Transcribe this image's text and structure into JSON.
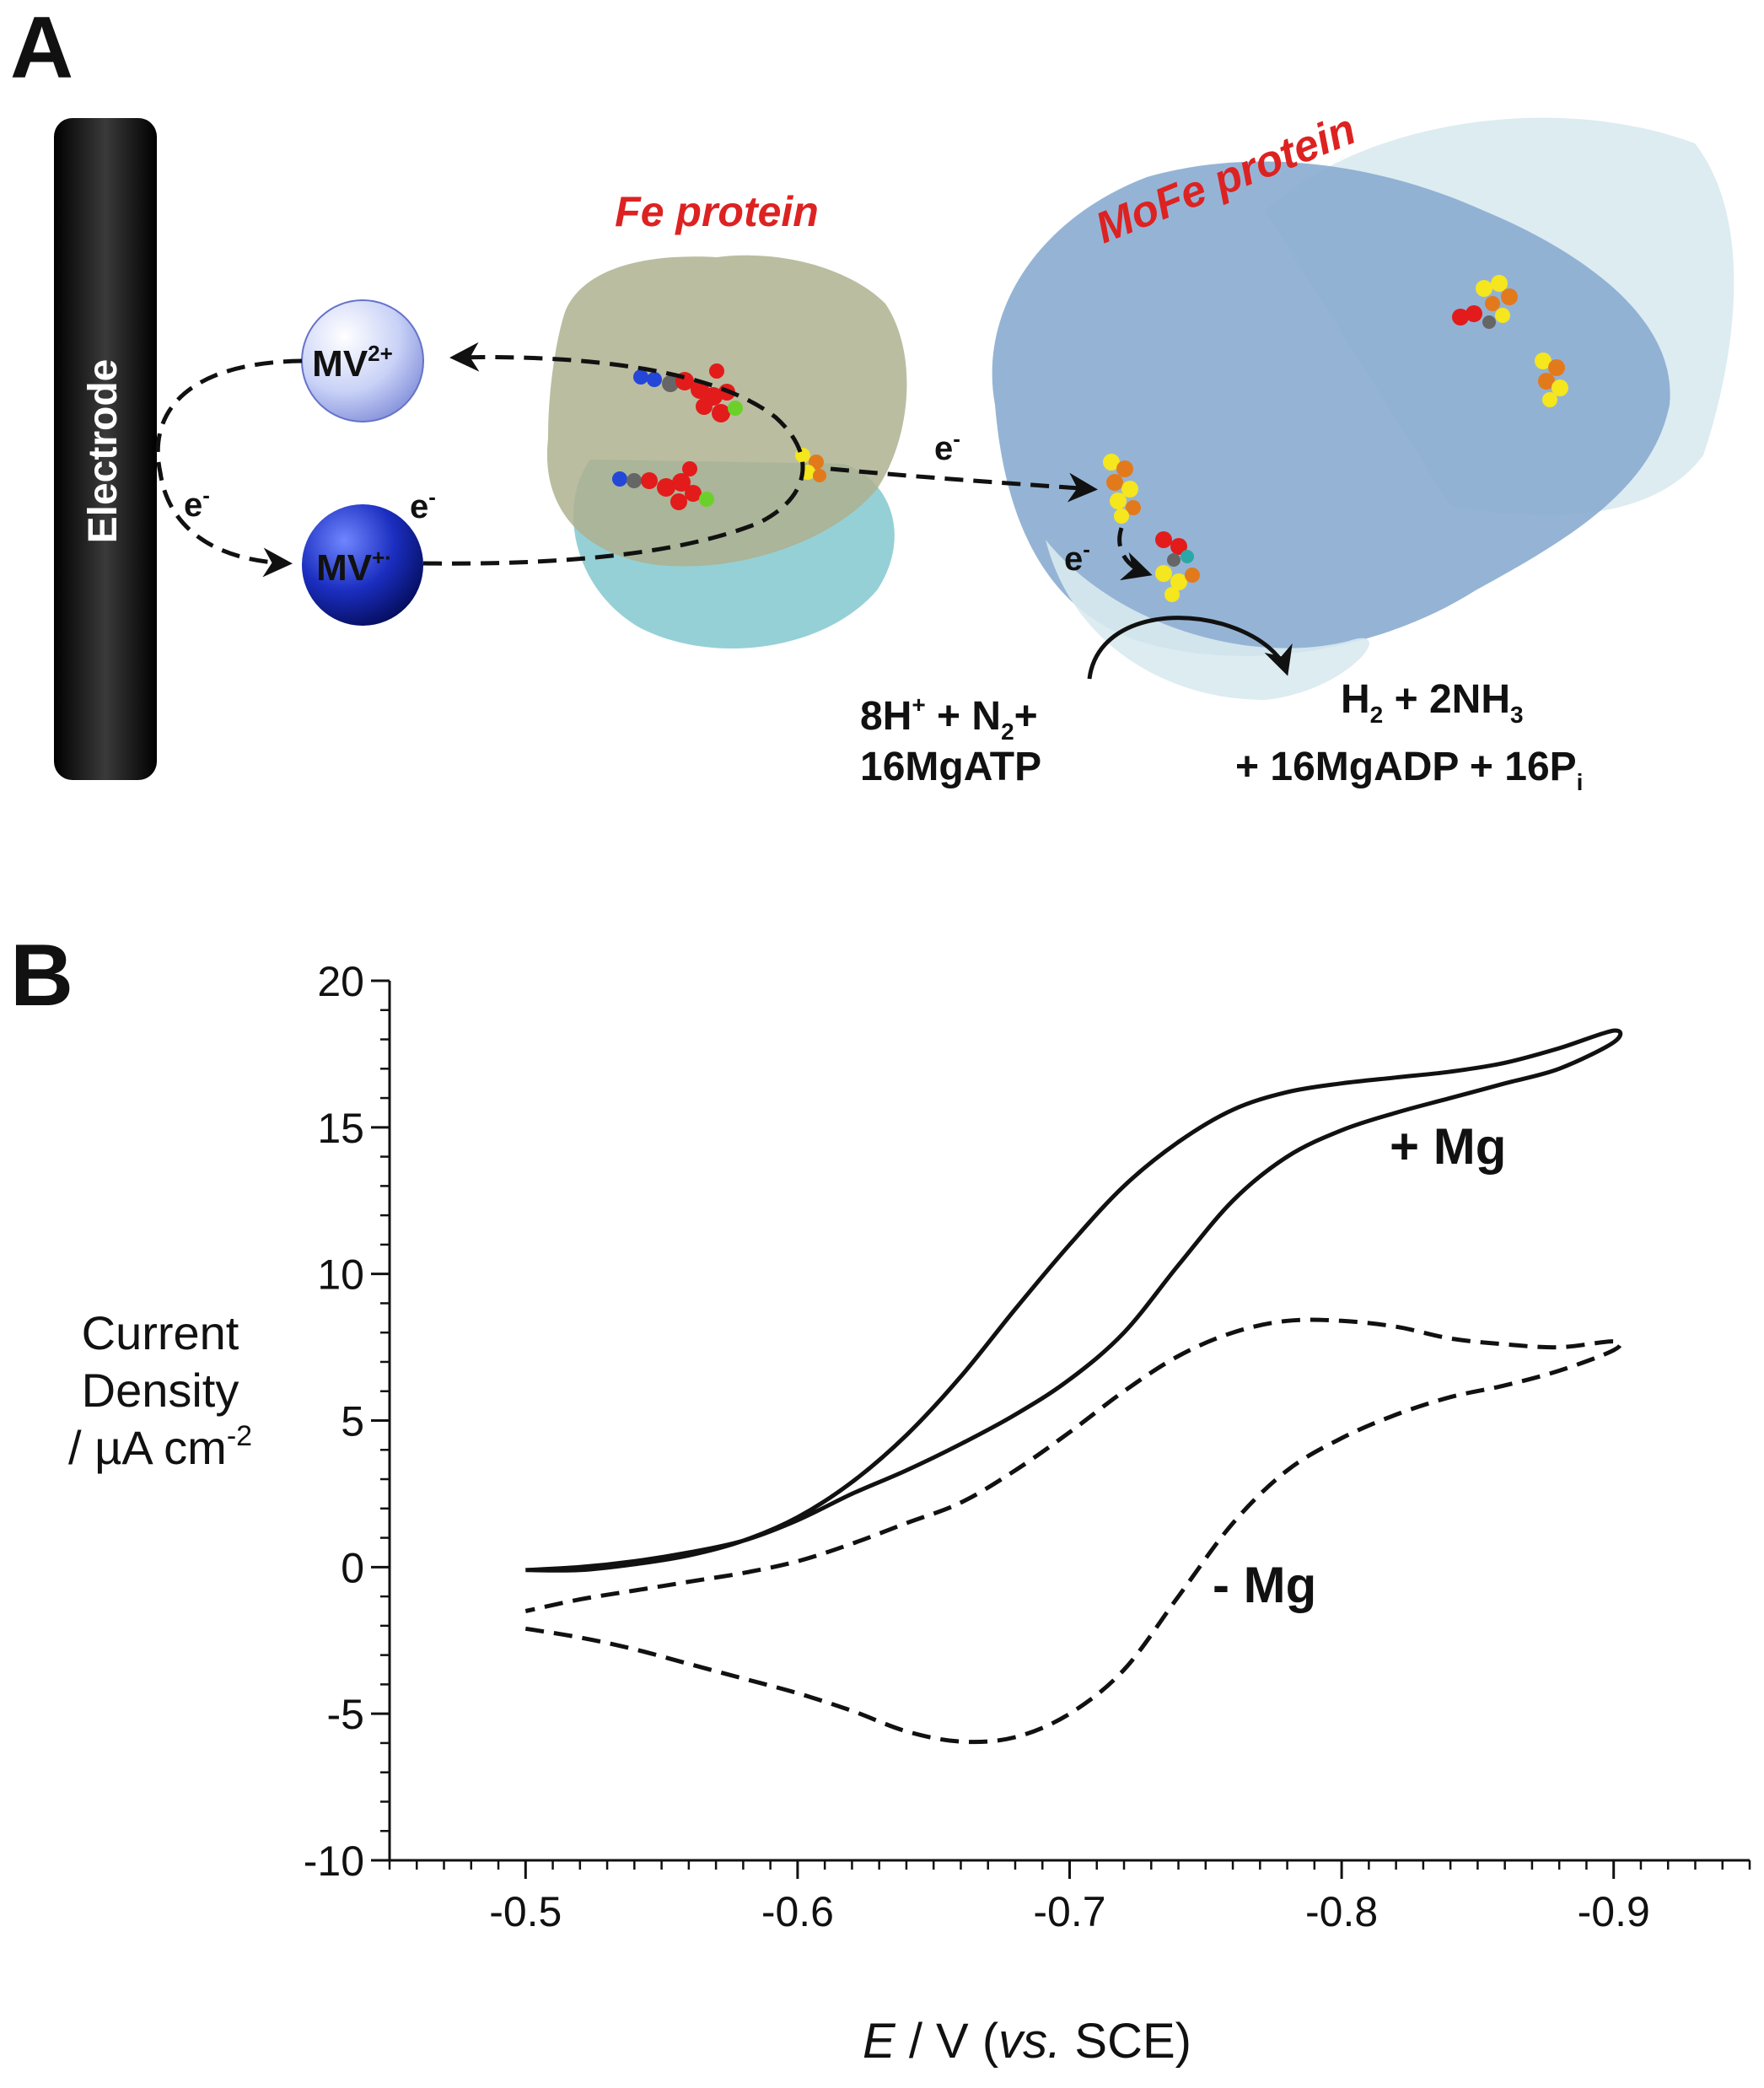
{
  "panel_a": {
    "letter": "A",
    "electrode_label": "Electrode",
    "mv_oxidized": {
      "base": "MV",
      "sup": "2+"
    },
    "mv_reduced": {
      "base": "MV",
      "sup": "+·"
    },
    "electron": {
      "base": "e",
      "sup": "-"
    },
    "fe_protein_label": "Fe protein",
    "mofe_protein_label": "MoFe protein",
    "reactants_line1": {
      "t1": "8H",
      "s1": "+",
      "t2": " + N",
      "s2": "2",
      "t3": "+"
    },
    "reactants_line2": "16MgATP",
    "products_line1": {
      "t1": "H",
      "s1": "2",
      "t2": " + 2NH",
      "s2": "3"
    },
    "products_line2": {
      "t1": "+ 16MgADP + 16P",
      "s1": "i"
    },
    "colors": {
      "protein_label": "#dd2222",
      "mv_light": "#c9d2f7",
      "mv_dark": "#0b1a9a",
      "fe_protein": "#a9ad8a",
      "fe_protein_back": "#5fb8c2",
      "mofe_protein": "#8aacd0",
      "mofe_back": "#d8eaf0"
    }
  },
  "panel_b": {
    "letter": "B",
    "label_plus_mg": "+ Mg",
    "label_minus_mg": "- Mg"
  },
  "chart_data": {
    "type": "line",
    "title": "",
    "xlabel": {
      "italic": "E",
      "mid": " / V (",
      "italic2": "vs.",
      "end": " SCE)"
    },
    "ylabel": [
      "Current",
      "Density",
      "/ µA cm",
      "-2"
    ],
    "xlim": [
      -0.45,
      -0.95
    ],
    "ylim": [
      -10,
      20
    ],
    "x_ticks": [
      -0.5,
      -0.6,
      -0.7,
      -0.8,
      -0.9
    ],
    "x_tick_labels": [
      "-0.5",
      "-0.6",
      "-0.7",
      "-0.8",
      "-0.9"
    ],
    "y_ticks": [
      -10,
      -5,
      0,
      5,
      10,
      15,
      20
    ],
    "y_tick_labels": [
      "-10",
      "-5",
      "0",
      "5",
      "10",
      "15",
      "20"
    ],
    "grid": false,
    "series": [
      {
        "name": "+ Mg",
        "style": "solid",
        "x": [
          -0.5,
          -0.52,
          -0.54,
          -0.56,
          -0.58,
          -0.6,
          -0.62,
          -0.64,
          -0.66,
          -0.68,
          -0.7,
          -0.72,
          -0.74,
          -0.76,
          -0.78,
          -0.8,
          -0.82,
          -0.84,
          -0.86,
          -0.88,
          -0.9,
          -0.9,
          -0.88,
          -0.86,
          -0.84,
          -0.82,
          -0.8,
          -0.78,
          -0.76,
          -0.74,
          -0.72,
          -0.7,
          -0.68,
          -0.66,
          -0.64,
          -0.62,
          -0.6,
          -0.58,
          -0.56,
          -0.54,
          -0.52,
          -0.5
        ],
        "y": [
          -0.1,
          0.0,
          0.2,
          0.5,
          0.9,
          1.6,
          2.5,
          3.3,
          4.2,
          5.2,
          6.4,
          8.0,
          10.3,
          12.5,
          14.0,
          14.9,
          15.5,
          16.0,
          16.5,
          17.0,
          17.9,
          18.3,
          17.7,
          17.2,
          16.9,
          16.7,
          16.5,
          16.2,
          15.6,
          14.5,
          13.0,
          11.0,
          8.8,
          6.5,
          4.5,
          2.9,
          1.7,
          0.9,
          0.4,
          0.1,
          -0.1,
          -0.1
        ]
      },
      {
        "name": "- Mg",
        "style": "dashed",
        "x": [
          -0.5,
          -0.52,
          -0.54,
          -0.56,
          -0.58,
          -0.6,
          -0.62,
          -0.64,
          -0.66,
          -0.68,
          -0.7,
          -0.72,
          -0.74,
          -0.76,
          -0.78,
          -0.8,
          -0.82,
          -0.84,
          -0.86,
          -0.88,
          -0.9,
          -0.9,
          -0.88,
          -0.86,
          -0.84,
          -0.82,
          -0.8,
          -0.78,
          -0.76,
          -0.74,
          -0.72,
          -0.7,
          -0.68,
          -0.66,
          -0.64,
          -0.62,
          -0.6,
          -0.58,
          -0.56,
          -0.54,
          -0.52,
          -0.5
        ],
        "y": [
          -2.1,
          -2.4,
          -2.8,
          -3.3,
          -3.8,
          -4.3,
          -4.9,
          -5.6,
          -5.95,
          -5.8,
          -5.0,
          -3.5,
          -1.0,
          1.5,
          3.3,
          4.4,
          5.2,
          5.8,
          6.2,
          6.7,
          7.4,
          7.7,
          7.5,
          7.6,
          7.8,
          8.2,
          8.4,
          8.4,
          8.0,
          7.2,
          6.0,
          4.6,
          3.3,
          2.2,
          1.5,
          0.8,
          0.2,
          -0.2,
          -0.5,
          -0.8,
          -1.1,
          -1.5
        ]
      }
    ]
  }
}
